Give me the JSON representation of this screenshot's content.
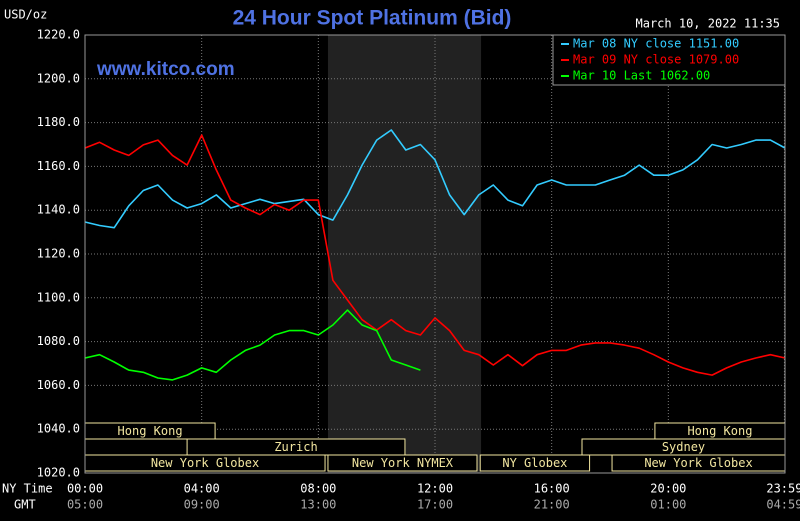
{
  "chart_data": {
    "type": "line",
    "title": "24 Hour Spot Platinum (Bid)",
    "unit_label": "USD/oz",
    "timestamp": "March 10, 2022 11:35",
    "watermark": "www.kitco.com",
    "x_axis_labels": [
      "NY Time",
      "GMT"
    ],
    "xlim": [
      0,
      24
    ],
    "xticks": [
      {
        "value": 0,
        "label": "00:00"
      },
      {
        "value": 4,
        "label": "04:00"
      },
      {
        "value": 8,
        "label": "08:00"
      },
      {
        "value": 12,
        "label": "12:00"
      },
      {
        "value": 16,
        "label": "16:00"
      },
      {
        "value": 20,
        "label": "20:00"
      },
      {
        "value": 23.98,
        "label": "23:59"
      }
    ],
    "gmt_labels": [
      "05:00",
      "09:00",
      "13:00",
      "17:00",
      "21:00",
      "01:00",
      "04:59"
    ],
    "ylim": [
      1020,
      1220
    ],
    "yticks": [
      {
        "value": 1020,
        "label": "1020.0"
      },
      {
        "value": 1040,
        "label": "1040.0"
      },
      {
        "value": 1060,
        "label": "1060.0"
      },
      {
        "value": 1080,
        "label": "1080.0"
      },
      {
        "value": 1100,
        "label": "1100.0"
      },
      {
        "value": 1120,
        "label": "1120.0"
      },
      {
        "value": 1140,
        "label": "1140.0"
      },
      {
        "value": 1160,
        "label": "1160.0"
      },
      {
        "value": 1180,
        "label": "1180.0"
      },
      {
        "value": 1200,
        "label": "1200.0"
      },
      {
        "value": 1220,
        "label": "1220.0"
      }
    ],
    "grid": true,
    "highlight": [
      8.33,
      13.58
    ],
    "sessions": [
      {
        "label": "Hong Kong",
        "start": 0,
        "end": 4.46,
        "row": 0
      },
      {
        "label": "Zurich",
        "start": 3.5,
        "end": 10.97,
        "row": 1
      },
      {
        "label": "New York Globex",
        "start": 0,
        "end": 8.23,
        "row": 2
      },
      {
        "label": "New York NYMEX",
        "start": 8.33,
        "end": 13.44,
        "row": 2
      },
      {
        "label": "NY Globex",
        "start": 13.55,
        "end": 17.3,
        "row": 2
      },
      {
        "label": "Hong Kong",
        "start": 19.54,
        "end": 24,
        "row": 0
      },
      {
        "label": "Sydney",
        "start": 17.04,
        "end": 24,
        "row": 1
      },
      {
        "label": "New York Globex",
        "start": 18.07,
        "end": 24,
        "row": 2
      }
    ],
    "x": [
      0,
      0.5,
      1,
      1.5,
      2,
      2.5,
      3,
      3.5,
      4,
      4.5,
      5,
      5.5,
      6,
      6.5,
      7,
      7.5,
      8,
      8.5,
      9,
      9.5,
      10,
      10.5,
      11,
      11.5,
      12,
      12.5,
      13,
      13.5,
      14,
      14.5,
      15,
      15.5,
      16,
      16.5,
      17,
      17.5,
      18,
      18.5,
      19,
      19.5,
      20,
      20.5,
      21,
      21.5,
      22,
      22.5,
      23,
      23.5,
      24
    ],
    "series": [
      {
        "name": "Mar 08 NY close 1151.00",
        "color": "#33ccff",
        "values": [
          1134.6,
          1133,
          1132,
          1142,
          1149,
          1151.5,
          1144.6,
          1141,
          1143,
          1147,
          1141,
          1143,
          1145,
          1143,
          1144,
          1145,
          1138,
          1135.5,
          1147,
          1160.6,
          1172,
          1176.6,
          1167.5,
          1170,
          1163,
          1147,
          1138,
          1147,
          1151.5,
          1144.6,
          1142,
          1151.5,
          1153.8,
          1151.5,
          1151.5,
          1151.5,
          1153.8,
          1156,
          1160.6,
          1156,
          1156,
          1158.4,
          1163,
          1170,
          1168.4,
          1170,
          1172,
          1172,
          1168.4
        ]
      },
      {
        "name": "Mar 09 NY close 1079.00",
        "color": "#ff0000",
        "values": [
          1168.4,
          1171,
          1167.5,
          1165,
          1169.8,
          1172,
          1165,
          1160.6,
          1174.3,
          1158.4,
          1144.6,
          1141,
          1138,
          1142.6,
          1140,
          1144.6,
          1144.6,
          1108,
          1099,
          1090,
          1085.3,
          1090,
          1085,
          1083,
          1090.8,
          1085,
          1076,
          1074,
          1069.3,
          1074,
          1069,
          1074,
          1076,
          1076,
          1078.4,
          1079.4,
          1079.4,
          1078.4,
          1077,
          1074,
          1070.7,
          1068,
          1066,
          1064.7,
          1068,
          1070.7,
          1072.5,
          1074,
          1072.5
        ]
      },
      {
        "name": "Mar 10 Last 1062.00",
        "color": "#00ff00",
        "values": [
          1072.5,
          1074,
          1070.7,
          1067,
          1066,
          1063.4,
          1062.5,
          1064.7,
          1068,
          1066,
          1071.6,
          1076,
          1078.4,
          1083,
          1085,
          1085,
          1083,
          1087.6,
          1094.4,
          1087.6,
          1085,
          1071.6,
          1069.3,
          1067,
          null,
          null,
          null,
          null,
          null,
          null,
          null,
          null,
          null,
          null,
          null,
          null,
          null,
          null,
          null,
          null,
          null,
          null,
          null,
          null,
          null,
          null,
          null,
          null,
          null
        ]
      }
    ]
  }
}
